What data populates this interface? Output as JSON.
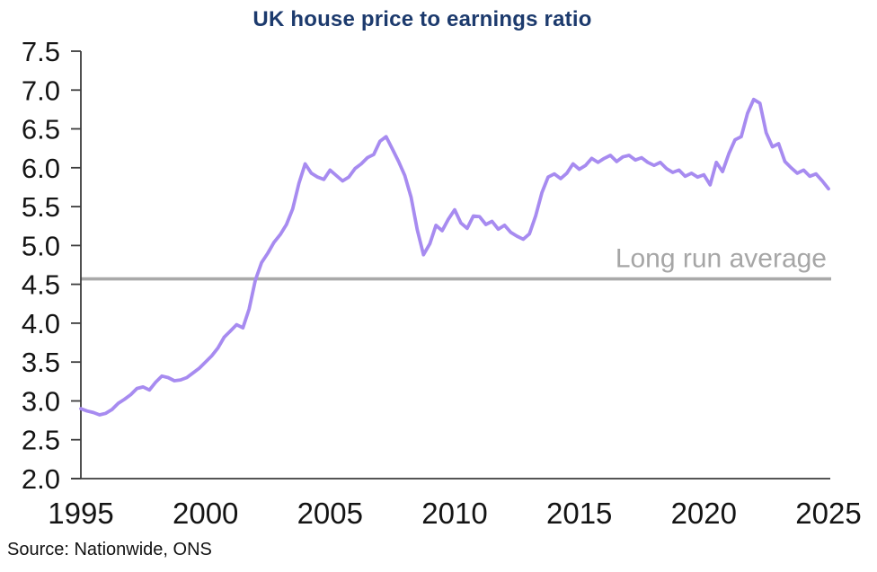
{
  "title": "UK house price to earnings ratio",
  "source": "Source: Nationwide, ONS",
  "colors": {
    "title": "#1c3a6d",
    "series_line": "#a78bf0",
    "average_line": "#a9a9a9",
    "average_label": "#a6a6a6",
    "axis": "#3c3c3c",
    "tick_label": "#141414",
    "background": "#ffffff"
  },
  "chart_data": {
    "type": "line",
    "title": "UK house price to earnings ratio",
    "xlabel": "",
    "ylabel": "",
    "xlim": [
      1995,
      2025
    ],
    "ylim": [
      2.0,
      7.5
    ],
    "xticks": [
      1995,
      2000,
      2005,
      2010,
      2015,
      2020,
      2025
    ],
    "yticks": [
      2.0,
      2.5,
      3.0,
      3.5,
      4.0,
      4.5,
      5.0,
      5.5,
      6.0,
      6.5,
      7.0,
      7.5
    ],
    "grid": false,
    "legend": "none",
    "average": {
      "label": "Long run average",
      "value": 4.57
    },
    "series": [
      {
        "name": "UK house price to earnings ratio",
        "x": [
          1995.0,
          1995.25,
          1995.5,
          1995.75,
          1996.0,
          1996.25,
          1996.5,
          1996.75,
          1997.0,
          1997.25,
          1997.5,
          1997.75,
          1998.0,
          1998.25,
          1998.5,
          1998.75,
          1999.0,
          1999.25,
          1999.5,
          1999.75,
          2000.0,
          2000.25,
          2000.5,
          2000.75,
          2001.0,
          2001.25,
          2001.5,
          2001.75,
          2002.0,
          2002.25,
          2002.5,
          2002.75,
          2003.0,
          2003.25,
          2003.5,
          2003.75,
          2004.0,
          2004.25,
          2004.5,
          2004.75,
          2005.0,
          2005.25,
          2005.5,
          2005.75,
          2006.0,
          2006.25,
          2006.5,
          2006.75,
          2007.0,
          2007.25,
          2007.5,
          2007.75,
          2008.0,
          2008.25,
          2008.5,
          2008.75,
          2009.0,
          2009.25,
          2009.5,
          2009.75,
          2010.0,
          2010.25,
          2010.5,
          2010.75,
          2011.0,
          2011.25,
          2011.5,
          2011.75,
          2012.0,
          2012.25,
          2012.5,
          2012.75,
          2013.0,
          2013.25,
          2013.5,
          2013.75,
          2014.0,
          2014.25,
          2014.5,
          2014.75,
          2015.0,
          2015.25,
          2015.5,
          2015.75,
          2016.0,
          2016.25,
          2016.5,
          2016.75,
          2017.0,
          2017.25,
          2017.5,
          2017.75,
          2018.0,
          2018.25,
          2018.5,
          2018.75,
          2019.0,
          2019.25,
          2019.5,
          2019.75,
          2020.0,
          2020.25,
          2020.5,
          2020.75,
          2021.0,
          2021.25,
          2021.5,
          2021.75,
          2022.0,
          2022.25,
          2022.5,
          2022.75,
          2023.0,
          2023.25,
          2023.5,
          2023.75,
          2024.0,
          2024.25,
          2024.5,
          2024.75,
          2025.0
        ],
        "values": [
          2.9,
          2.87,
          2.85,
          2.82,
          2.84,
          2.89,
          2.97,
          3.02,
          3.08,
          3.16,
          3.18,
          3.14,
          3.24,
          3.32,
          3.3,
          3.26,
          3.27,
          3.3,
          3.36,
          3.42,
          3.5,
          3.58,
          3.68,
          3.82,
          3.9,
          3.98,
          3.94,
          4.18,
          4.55,
          4.78,
          4.9,
          5.04,
          5.14,
          5.27,
          5.47,
          5.8,
          6.05,
          5.93,
          5.88,
          5.85,
          5.97,
          5.9,
          5.83,
          5.88,
          5.99,
          6.05,
          6.13,
          6.17,
          6.34,
          6.4,
          6.24,
          6.08,
          5.9,
          5.62,
          5.2,
          4.88,
          5.02,
          5.26,
          5.19,
          5.34,
          5.46,
          5.29,
          5.22,
          5.38,
          5.37,
          5.27,
          5.31,
          5.21,
          5.26,
          5.17,
          5.12,
          5.08,
          5.15,
          5.38,
          5.68,
          5.88,
          5.92,
          5.86,
          5.93,
          6.05,
          5.98,
          6.03,
          6.12,
          6.07,
          6.12,
          6.16,
          6.08,
          6.14,
          6.16,
          6.1,
          6.13,
          6.07,
          6.03,
          6.07,
          5.99,
          5.94,
          5.97,
          5.89,
          5.93,
          5.88,
          5.91,
          5.78,
          6.07,
          5.95,
          6.18,
          6.36,
          6.4,
          6.7,
          6.88,
          6.83,
          6.45,
          6.27,
          6.31,
          6.08,
          6.0,
          5.93,
          5.97,
          5.89,
          5.92,
          5.83,
          5.73
        ]
      }
    ]
  }
}
